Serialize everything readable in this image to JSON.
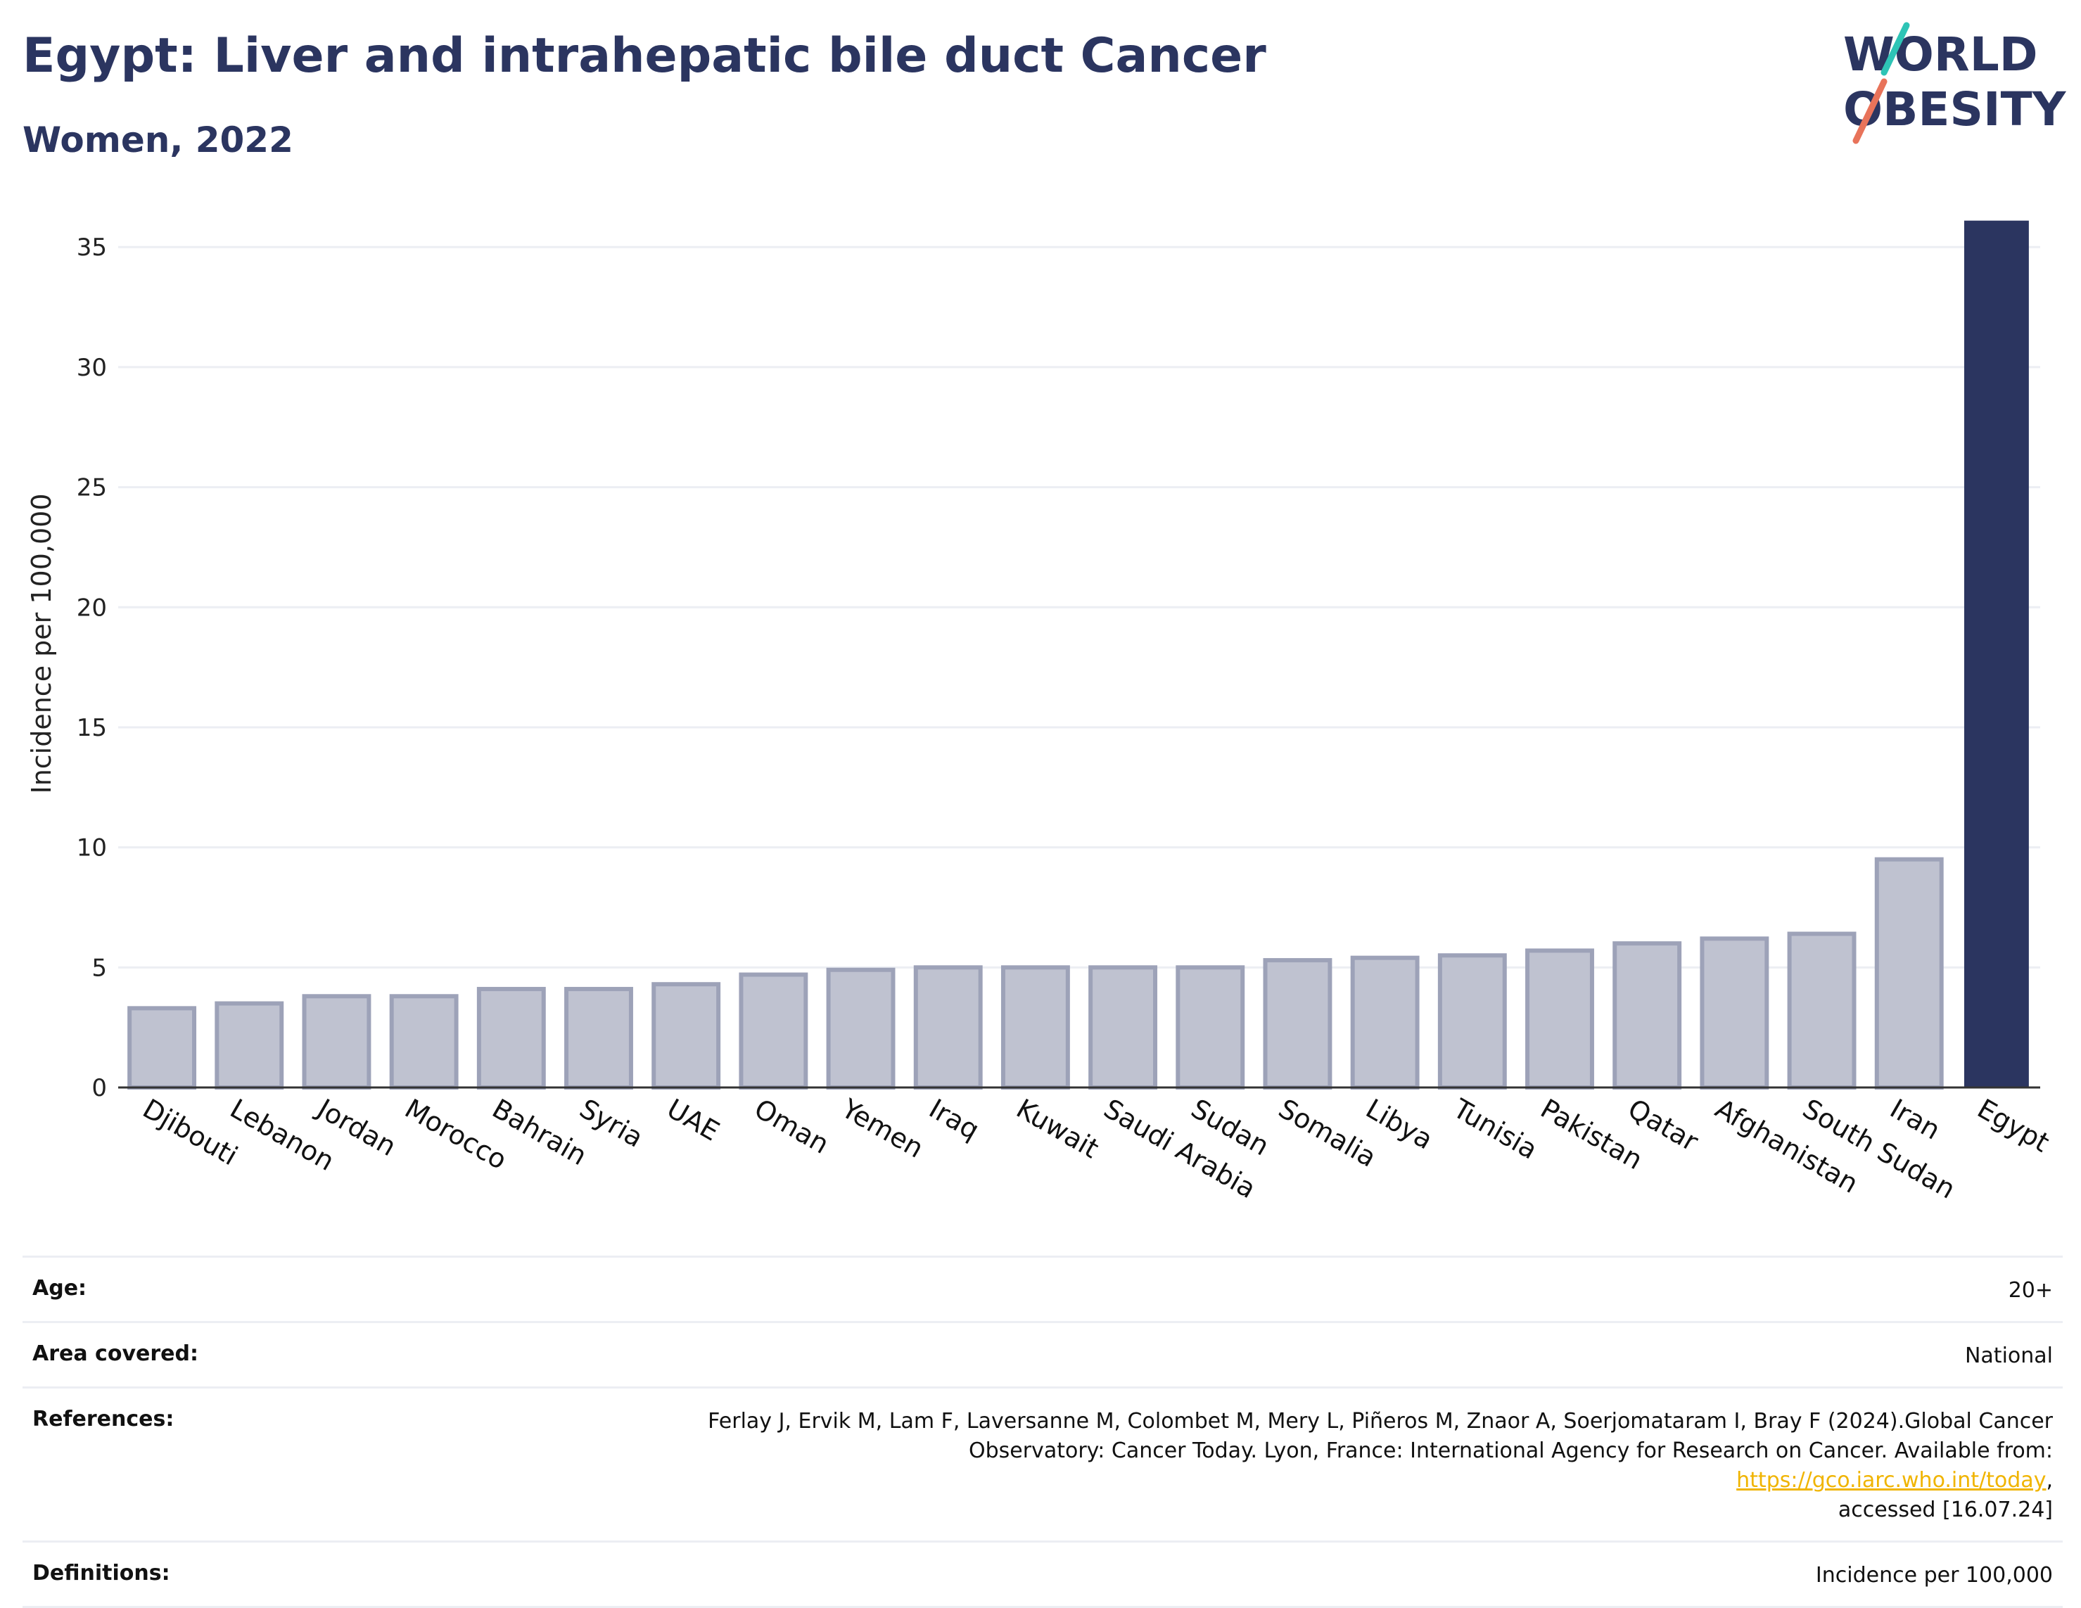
{
  "header": {
    "title": "Egypt: Liver and intrahepatic bile duct Cancer",
    "subtitle": "Women, 2022"
  },
  "logo": {
    "line1": "WORLD",
    "line2": "OBESITY",
    "accent_teal": "#2ec4b6",
    "accent_red": "#e8735a",
    "text_color": "#2b3560"
  },
  "chart_data": {
    "type": "bar",
    "categories": [
      "Djibouti",
      "Lebanon",
      "Jordan",
      "Morocco",
      "Bahrain",
      "Syria",
      "UAE",
      "Oman",
      "Yemen",
      "Iraq",
      "Kuwait",
      "Saudi Arabia",
      "Sudan",
      "Somalia",
      "Libya",
      "Tunisia",
      "Pakistan",
      "Qatar",
      "Afghanistan",
      "South Sudan",
      "Iran",
      "Egypt"
    ],
    "values": [
      3.3,
      3.5,
      3.8,
      3.8,
      4.1,
      4.1,
      4.3,
      4.7,
      4.9,
      5.0,
      5.0,
      5.0,
      5.0,
      5.3,
      5.4,
      5.5,
      5.7,
      6.0,
      6.2,
      6.4,
      9.5,
      36.1
    ],
    "highlight": "Egypt",
    "title": "Egypt: Liver and intrahepatic bile duct Cancer",
    "subtitle": "Women, 2022",
    "xlabel": "",
    "ylabel": "Incidence per 100,000",
    "ylim": [
      0,
      36.5
    ],
    "yticks": [
      0,
      5,
      10,
      15,
      20,
      25,
      30,
      35
    ],
    "grid": true,
    "legend": "none",
    "colors": {
      "bar": "#bfc2d0",
      "bar_outline": "#9da2b8",
      "highlight": "#2b3560",
      "grid": "#eceef3",
      "axis": "#333333"
    }
  },
  "meta": {
    "age_label": "Age:",
    "age_value": "20+",
    "area_label": "Area covered:",
    "area_value": "National",
    "references_label": "References:",
    "references_line1": "Ferlay J, Ervik M, Lam F, Laversanne M, Colombet M, Mery L, Piñeros M, Znaor A, Soerjomataram I, Bray F (2024).Global Cancer",
    "references_line2": "Observatory: Cancer Today. Lyon, France: International Agency for Research on Cancer. Available from: ",
    "references_link": "https://gco.iarc.who.int/today",
    "references_line2_end": ",",
    "references_line3": "accessed [16.07.24]",
    "definitions_label": "Definitions:",
    "definitions_value": "Incidence per 100,000"
  }
}
